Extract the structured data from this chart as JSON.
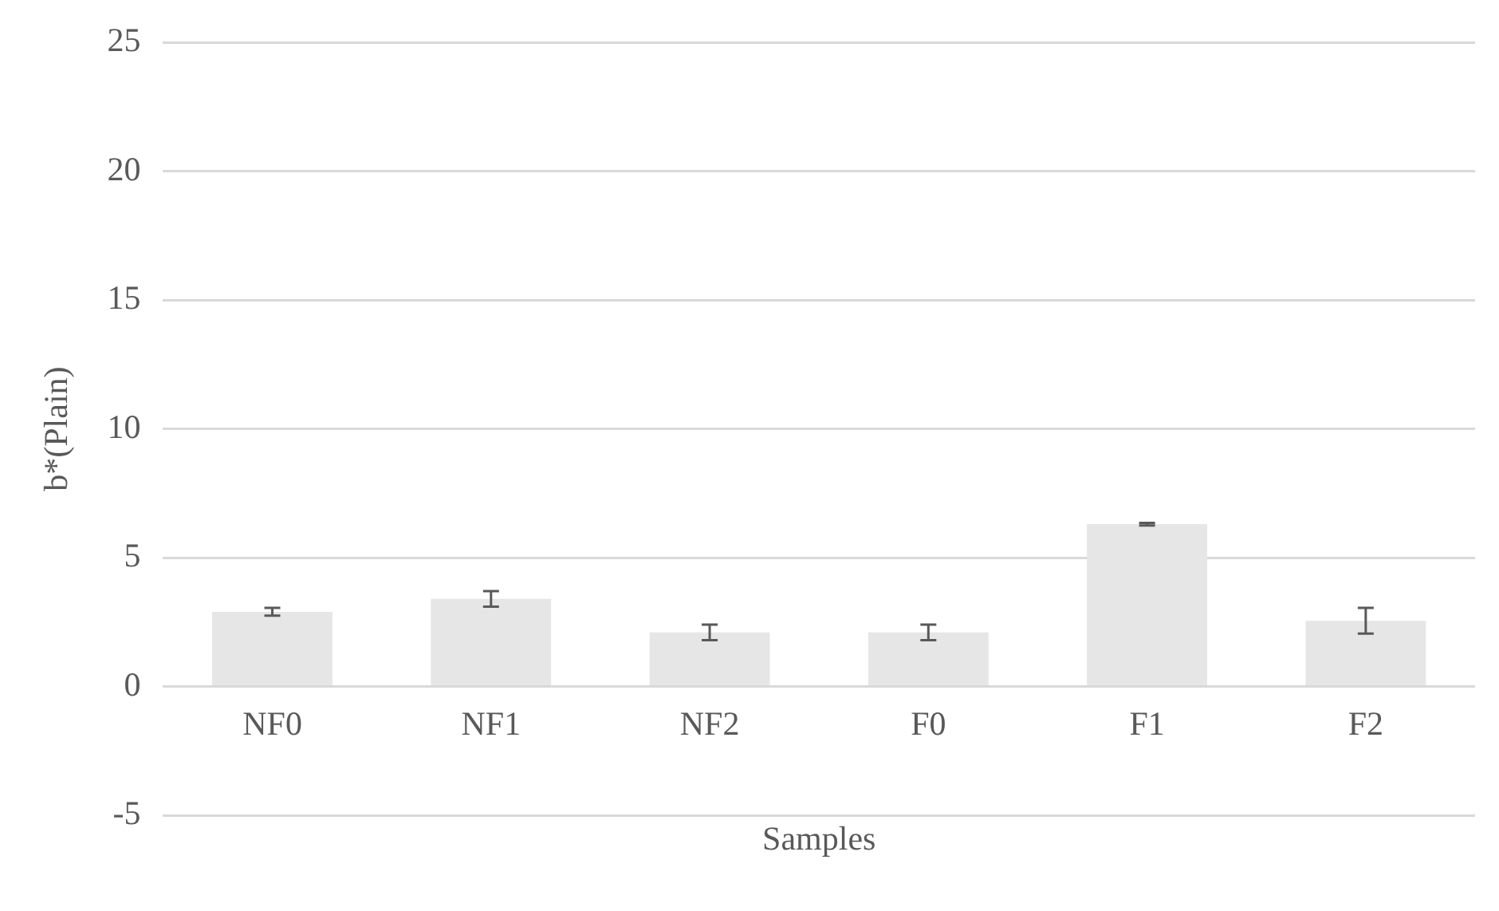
{
  "chart_data": {
    "type": "bar",
    "xlabel": "Samples",
    "ylabel": "b*(Plain)",
    "categories": [
      "NF0",
      "NF1",
      "NF2",
      "F0",
      "F1",
      "F2"
    ],
    "values": [
      2.9,
      3.4,
      2.1,
      2.1,
      6.3,
      2.55
    ],
    "errors": [
      0.15,
      0.3,
      0.3,
      0.3,
      0.05,
      0.5
    ],
    "color": "#e6e6e6",
    "ylim": [
      -5,
      25
    ],
    "yticks": [
      -5,
      0,
      5,
      10,
      15,
      20,
      25
    ],
    "grid": "y"
  }
}
